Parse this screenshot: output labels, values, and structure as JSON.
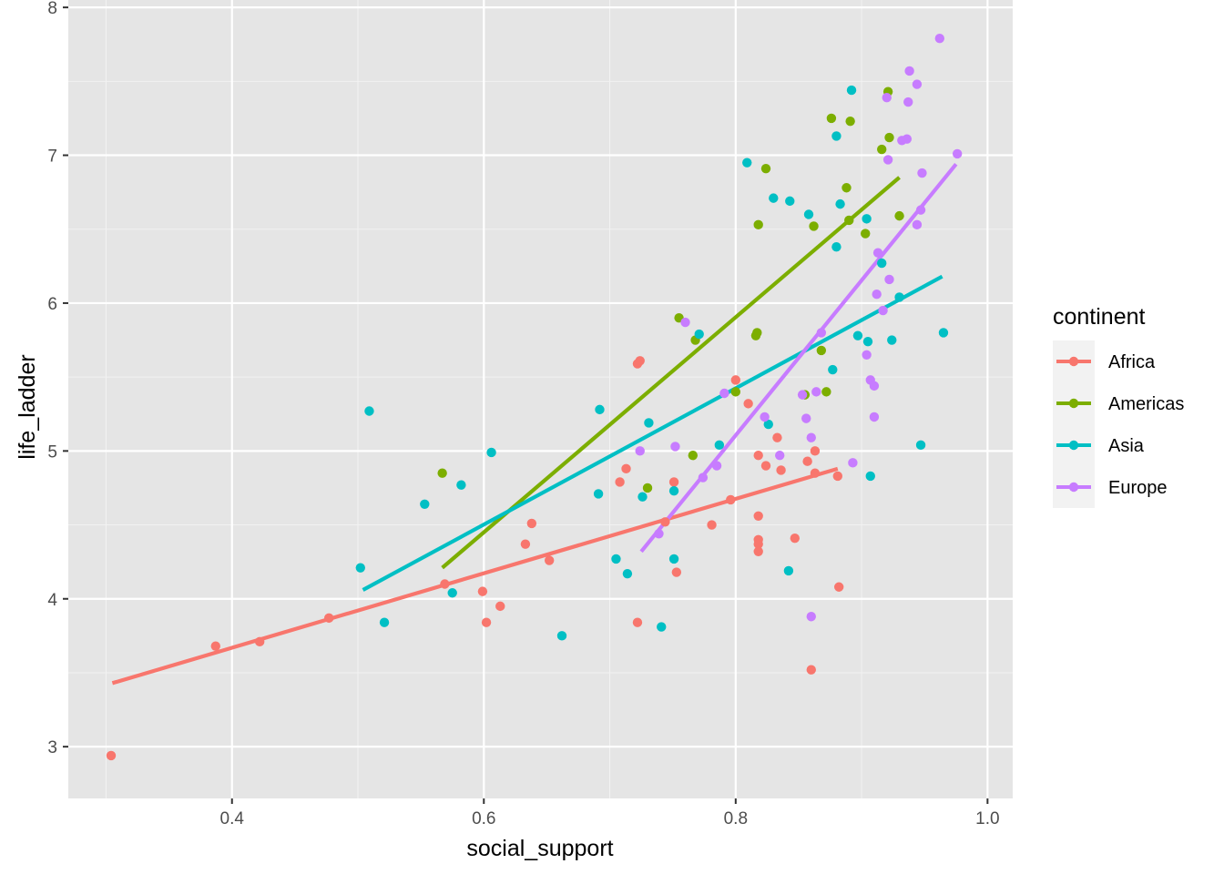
{
  "chart_data": {
    "type": "scatter",
    "title": "",
    "xlabel": "social_support",
    "ylabel": "life_ladder",
    "xlim": [
      0.27,
      1.02
    ],
    "ylim": [
      2.65,
      8.05
    ],
    "xticks": [
      0.4,
      0.6,
      0.8,
      1.0
    ],
    "xtick_labels": [
      "0.4",
      "0.6",
      "0.8",
      "1.0"
    ],
    "yticks": [
      3,
      4,
      5,
      6,
      7,
      8
    ],
    "ytick_labels": [
      "3",
      "4",
      "5",
      "6",
      "7",
      "8"
    ],
    "grid": true,
    "background": "#e5e5e5",
    "legend": {
      "title": "continent",
      "position": "right"
    },
    "series": [
      {
        "name": "Africa",
        "color": "#f8766d",
        "points": [
          [
            0.304,
            2.94
          ],
          [
            0.387,
            3.68
          ],
          [
            0.422,
            3.71
          ],
          [
            0.477,
            3.87
          ],
          [
            0.569,
            4.1
          ],
          [
            0.599,
            4.05
          ],
          [
            0.602,
            3.84
          ],
          [
            0.613,
            3.95
          ],
          [
            0.633,
            4.37
          ],
          [
            0.638,
            4.51
          ],
          [
            0.652,
            4.26
          ],
          [
            0.708,
            4.79
          ],
          [
            0.713,
            4.88
          ],
          [
            0.722,
            5.59
          ],
          [
            0.724,
            5.61
          ],
          [
            0.722,
            3.84
          ],
          [
            0.744,
            4.52
          ],
          [
            0.751,
            4.79
          ],
          [
            0.753,
            4.18
          ],
          [
            0.781,
            4.5
          ],
          [
            0.796,
            4.67
          ],
          [
            0.8,
            5.48
          ],
          [
            0.81,
            5.32
          ],
          [
            0.818,
            4.97
          ],
          [
            0.818,
            4.56
          ],
          [
            0.818,
            4.4
          ],
          [
            0.818,
            4.37
          ],
          [
            0.818,
            4.32
          ],
          [
            0.824,
            4.9
          ],
          [
            0.833,
            5.09
          ],
          [
            0.836,
            4.87
          ],
          [
            0.847,
            4.41
          ],
          [
            0.857,
            4.93
          ],
          [
            0.863,
            5.0
          ],
          [
            0.863,
            4.85
          ],
          [
            0.86,
            3.52
          ],
          [
            0.881,
            4.83
          ],
          [
            0.882,
            4.08
          ]
        ],
        "trend": [
          [
            0.305,
            3.43
          ],
          [
            0.881,
            4.88
          ]
        ]
      },
      {
        "name": "Americas",
        "color": "#7cae00",
        "points": [
          [
            0.567,
            4.85
          ],
          [
            0.73,
            4.75
          ],
          [
            0.755,
            5.9
          ],
          [
            0.766,
            4.97
          ],
          [
            0.768,
            5.75
          ],
          [
            0.8,
            5.4
          ],
          [
            0.816,
            5.78
          ],
          [
            0.817,
            5.8
          ],
          [
            0.818,
            6.53
          ],
          [
            0.824,
            6.91
          ],
          [
            0.855,
            5.38
          ],
          [
            0.862,
            6.52
          ],
          [
            0.868,
            5.68
          ],
          [
            0.872,
            5.4
          ],
          [
            0.876,
            7.25
          ],
          [
            0.888,
            6.78
          ],
          [
            0.89,
            6.56
          ],
          [
            0.891,
            7.23
          ],
          [
            0.903,
            6.47
          ],
          [
            0.916,
            7.04
          ],
          [
            0.921,
            7.43
          ],
          [
            0.922,
            7.12
          ],
          [
            0.93,
            6.59
          ]
        ],
        "trend": [
          [
            0.567,
            4.21
          ],
          [
            0.93,
            6.85
          ]
        ]
      },
      {
        "name": "Asia",
        "color": "#00bfc4",
        "points": [
          [
            0.502,
            4.21
          ],
          [
            0.509,
            5.27
          ],
          [
            0.521,
            3.84
          ],
          [
            0.553,
            4.64
          ],
          [
            0.575,
            4.04
          ],
          [
            0.582,
            4.77
          ],
          [
            0.606,
            4.99
          ],
          [
            0.662,
            3.75
          ],
          [
            0.691,
            4.71
          ],
          [
            0.692,
            5.28
          ],
          [
            0.705,
            4.27
          ],
          [
            0.714,
            4.17
          ],
          [
            0.726,
            4.69
          ],
          [
            0.731,
            5.19
          ],
          [
            0.741,
            3.81
          ],
          [
            0.751,
            4.73
          ],
          [
            0.751,
            4.27
          ],
          [
            0.771,
            5.79
          ],
          [
            0.787,
            5.04
          ],
          [
            0.809,
            6.95
          ],
          [
            0.826,
            5.18
          ],
          [
            0.83,
            6.71
          ],
          [
            0.842,
            4.19
          ],
          [
            0.843,
            6.69
          ],
          [
            0.858,
            6.6
          ],
          [
            0.877,
            5.55
          ],
          [
            0.88,
            6.38
          ],
          [
            0.88,
            7.13
          ],
          [
            0.883,
            6.67
          ],
          [
            0.892,
            7.44
          ],
          [
            0.897,
            5.78
          ],
          [
            0.904,
            6.57
          ],
          [
            0.905,
            5.74
          ],
          [
            0.907,
            4.83
          ],
          [
            0.916,
            6.27
          ],
          [
            0.924,
            5.75
          ],
          [
            0.93,
            6.04
          ],
          [
            0.947,
            5.04
          ],
          [
            0.965,
            5.8
          ]
        ],
        "trend": [
          [
            0.504,
            4.06
          ],
          [
            0.964,
            6.18
          ]
        ]
      },
      {
        "name": "Europe",
        "color": "#c77cff",
        "points": [
          [
            0.724,
            5.0
          ],
          [
            0.739,
            4.44
          ],
          [
            0.752,
            5.03
          ],
          [
            0.76,
            5.87
          ],
          [
            0.774,
            4.82
          ],
          [
            0.785,
            4.9
          ],
          [
            0.791,
            5.39
          ],
          [
            0.823,
            5.23
          ],
          [
            0.835,
            4.97
          ],
          [
            0.853,
            5.38
          ],
          [
            0.856,
            5.22
          ],
          [
            0.86,
            5.09
          ],
          [
            0.86,
            3.88
          ],
          [
            0.864,
            5.4
          ],
          [
            0.868,
            5.8
          ],
          [
            0.893,
            4.92
          ],
          [
            0.904,
            5.65
          ],
          [
            0.907,
            5.48
          ],
          [
            0.91,
            5.44
          ],
          [
            0.91,
            5.23
          ],
          [
            0.912,
            6.06
          ],
          [
            0.913,
            6.34
          ],
          [
            0.917,
            5.95
          ],
          [
            0.92,
            7.39
          ],
          [
            0.921,
            6.97
          ],
          [
            0.922,
            6.16
          ],
          [
            0.932,
            7.1
          ],
          [
            0.936,
            7.11
          ],
          [
            0.937,
            7.36
          ],
          [
            0.938,
            7.57
          ],
          [
            0.944,
            7.48
          ],
          [
            0.944,
            6.53
          ],
          [
            0.947,
            6.63
          ],
          [
            0.948,
            6.88
          ],
          [
            0.962,
            7.79
          ],
          [
            0.976,
            7.01
          ]
        ],
        "trend": [
          [
            0.725,
            4.32
          ],
          [
            0.975,
            6.94
          ]
        ]
      }
    ]
  }
}
